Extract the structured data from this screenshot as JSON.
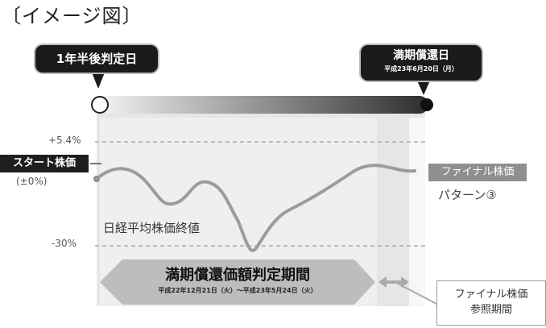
{
  "caption": "〔イメージ図〕",
  "callouts": {
    "left": "1年半後判定日",
    "right_title": "満期償還日",
    "right_date": "平成23年6月20日（月）"
  },
  "axis_labels": {
    "upper": "+5.4%",
    "lower": "-30%"
  },
  "start": {
    "label": "スタート株価",
    "sub": "(±0%)"
  },
  "nikkei_label": "日経平均株価終値",
  "final": {
    "label": "ファイナル株価",
    "pattern": "パターン③"
  },
  "period": {
    "title": "満期償還価額判定期間",
    "dates": "平成22年12月21日（火）～平成23年5月24日（火）"
  },
  "reference": {
    "line1": "ファイナル株価",
    "line2": "参照期間"
  },
  "colors": {
    "bar_start": "#f5f5f5",
    "bar_end": "#2e2e2e",
    "period_band": "#bdbdbd",
    "panel": "#e6e6e6"
  }
}
